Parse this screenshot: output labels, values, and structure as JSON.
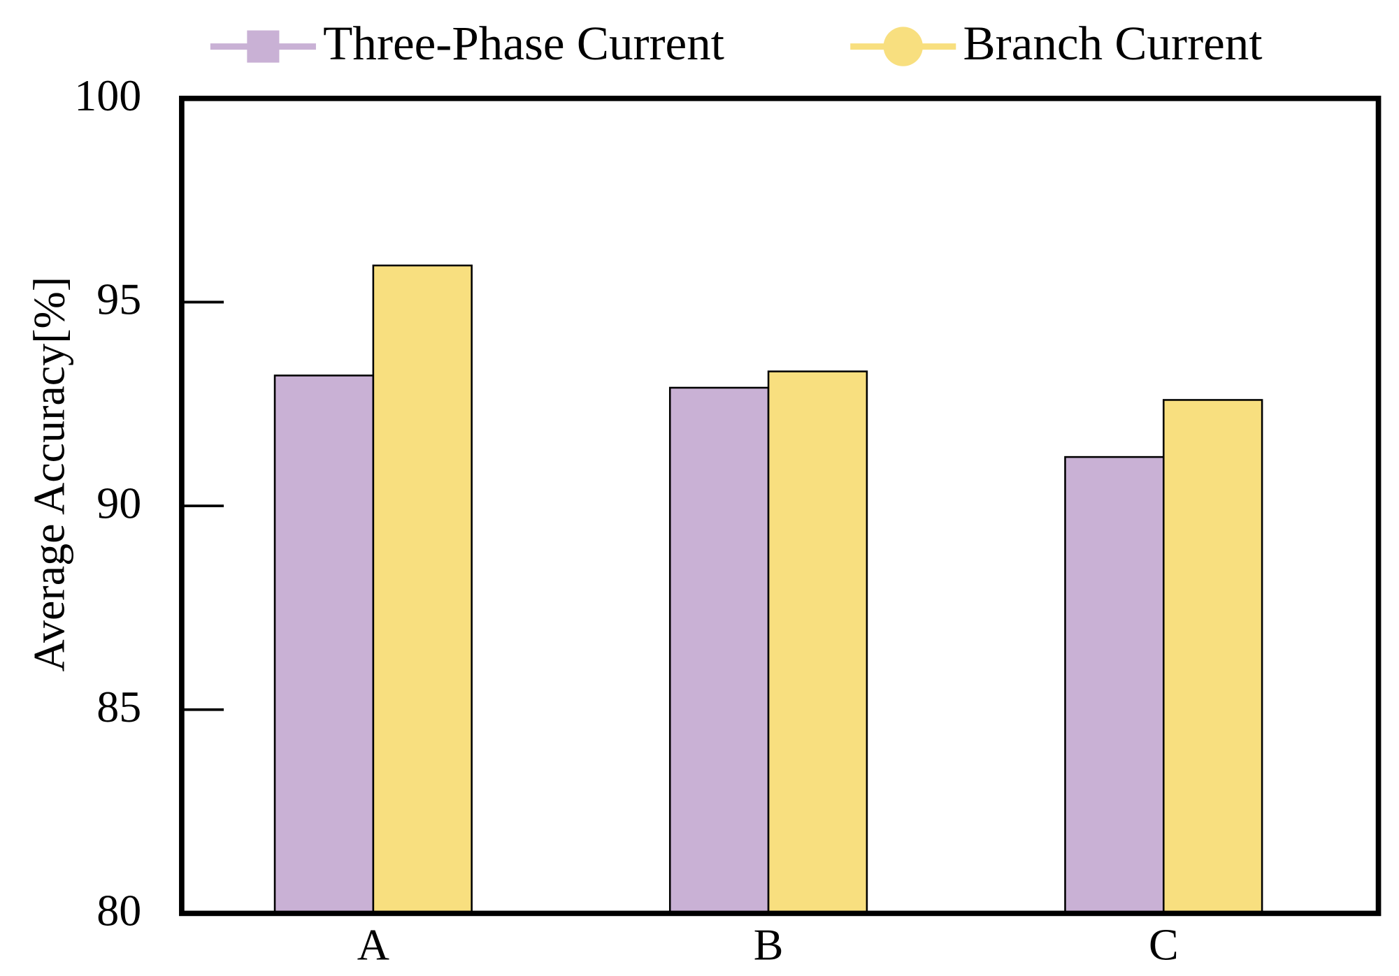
{
  "chart_data": {
    "type": "bar",
    "categories": [
      "A",
      "B",
      "C"
    ],
    "series": [
      {
        "name": "Three-Phase Current",
        "color": "#c9b1d5",
        "values": [
          93.2,
          92.9,
          91.2
        ]
      },
      {
        "name": "Branch Current",
        "color": "#f8df7f",
        "values": [
          95.9,
          93.3,
          92.6
        ]
      }
    ],
    "y_label": "Average Accuracy[%]",
    "ylim": [
      80,
      100
    ],
    "yticks": [
      80,
      85,
      90,
      95,
      100
    ]
  }
}
